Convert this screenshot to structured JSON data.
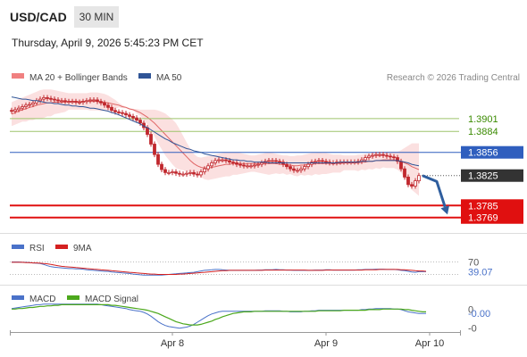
{
  "header": {
    "symbol": "USD/CAD",
    "timeframe": "30 MIN",
    "datetime": "Thursday, April 9, 2026 5:45:23 PM CET"
  },
  "credit": "Research © 2026 Trading Central",
  "colors": {
    "candle": "#c0272d",
    "bollinger": "#f4a6a6",
    "ma50": "#2f5496",
    "resistance": "#9dc46b",
    "support": "#e01010",
    "pivot": "#2f5ebe",
    "last": "#333333",
    "rsi": "#4a72c9",
    "rsi_ma": "#d42020",
    "macd": "#4a72c9",
    "macd_signal": "#4ca81c"
  },
  "chart_data": [
    {
      "type": "candlestick",
      "legend": [
        "MA 20 + Bollinger Bands",
        "MA 50"
      ],
      "ylim": [
        1.3752,
        1.3945
      ],
      "x_labels": [
        "Apr 8",
        "Apr 9",
        "Apr 10"
      ],
      "levels": [
        {
          "value": 1.3901,
          "label": "1.3901",
          "kind": "resistance"
        },
        {
          "value": 1.3884,
          "label": "1.3884",
          "kind": "resistance"
        },
        {
          "value": 1.3856,
          "label": "1.3856",
          "kind": "pivot"
        },
        {
          "value": 1.3785,
          "label": "1.3785",
          "kind": "support"
        },
        {
          "value": 1.3769,
          "label": "1.3769",
          "kind": "support"
        }
      ],
      "last_price": {
        "value": 1.3825,
        "label": "1.3825"
      },
      "close": [
        1.3911,
        1.3913,
        1.3915,
        1.3917,
        1.3919,
        1.392,
        1.3922,
        1.3925,
        1.3927,
        1.3929,
        1.3928,
        1.3927,
        1.3926,
        1.3925,
        1.3925,
        1.3924,
        1.3924,
        1.3924,
        1.3923,
        1.3923,
        1.3924,
        1.3925,
        1.3926,
        1.3926,
        1.3924,
        1.3922,
        1.3919,
        1.3916,
        1.3912,
        1.391,
        1.3909,
        1.3908,
        1.3906,
        1.3904,
        1.3902,
        1.3899,
        1.3895,
        1.3889,
        1.388,
        1.3867,
        1.3853,
        1.384,
        1.3833,
        1.3829,
        1.3829,
        1.383,
        1.3828,
        1.3827,
        1.3827,
        1.3828,
        1.3829,
        1.3827,
        1.3826,
        1.383,
        1.3834,
        1.3838,
        1.3842,
        1.3845,
        1.3846,
        1.3846,
        1.3845,
        1.3843,
        1.3842,
        1.384,
        1.3839,
        1.3838,
        1.3838,
        1.3838,
        1.3839,
        1.384,
        1.3842,
        1.3844,
        1.3845,
        1.3845,
        1.3844,
        1.3843,
        1.384,
        1.3837,
        1.3834,
        1.3832,
        1.3832,
        1.3834,
        1.3837,
        1.384,
        1.3843,
        1.3844,
        1.3845,
        1.3844,
        1.3843,
        1.3842,
        1.3842,
        1.3843,
        1.3843,
        1.3843,
        1.3843,
        1.3843,
        1.3843,
        1.3844,
        1.3846,
        1.3849,
        1.3851,
        1.3852,
        1.3853,
        1.3853,
        1.3852,
        1.3851,
        1.385,
        1.3849,
        1.3844,
        1.3834,
        1.3823,
        1.3813,
        1.3811,
        1.3818,
        1.3825
      ],
      "bb_upper": [
        1.3923,
        1.3925,
        1.3927,
        1.3929,
        1.3931,
        1.3933,
        1.3935,
        1.3937,
        1.3939,
        1.394,
        1.394,
        1.394,
        1.3939,
        1.3938,
        1.3937,
        1.3936,
        1.3935,
        1.3935,
        1.3935,
        1.3935,
        1.3935,
        1.3935,
        1.3936,
        1.3936,
        1.3936,
        1.3935,
        1.3934,
        1.3932,
        1.3929,
        1.3926,
        1.3922,
        1.3919,
        1.3917,
        1.3915,
        1.3914,
        1.3914,
        1.3913,
        1.3913,
        1.3913,
        1.3913,
        1.3913,
        1.3912,
        1.391,
        1.3908,
        1.3904,
        1.39,
        1.3895,
        1.3887,
        1.3878,
        1.3869,
        1.3861,
        1.3854,
        1.385,
        1.3849,
        1.385,
        1.3851,
        1.3852,
        1.3853,
        1.3854,
        1.3855,
        1.3856,
        1.3856,
        1.3856,
        1.3856,
        1.3855,
        1.3854,
        1.3853,
        1.3852,
        1.3852,
        1.3853,
        1.3854,
        1.3855,
        1.3856,
        1.3855,
        1.3854,
        1.3853,
        1.3852,
        1.3852,
        1.3851,
        1.3851,
        1.3852,
        1.3852,
        1.3853,
        1.3854,
        1.3855,
        1.3855,
        1.3856,
        1.3855,
        1.3855,
        1.3854,
        1.3853,
        1.3853,
        1.3853,
        1.3852,
        1.3852,
        1.3852,
        1.3852,
        1.3853,
        1.3853,
        1.3854,
        1.3854,
        1.3855,
        1.3855,
        1.3856,
        1.3856,
        1.3857,
        1.3857,
        1.3857,
        1.3857,
        1.3859,
        1.3862,
        1.3865,
        1.3868,
        1.3868,
        1.3868
      ],
      "bb_mid": [
        1.3907,
        1.3909,
        1.3911,
        1.3913,
        1.3914,
        1.3916,
        1.3917,
        1.3919,
        1.392,
        1.3921,
        1.3922,
        1.3922,
        1.3923,
        1.3923,
        1.3923,
        1.3923,
        1.3924,
        1.3924,
        1.3924,
        1.3924,
        1.3924,
        1.3924,
        1.3924,
        1.3924,
        1.3924,
        1.3923,
        1.3923,
        1.3922,
        1.3921,
        1.392,
        1.3919,
        1.3917,
        1.3916,
        1.3914,
        1.3913,
        1.3911,
        1.3909,
        1.3906,
        1.3903,
        1.3899,
        1.3895,
        1.389,
        1.3885,
        1.388,
        1.3875,
        1.387,
        1.3865,
        1.386,
        1.3855,
        1.385,
        1.3845,
        1.3841,
        1.3838,
        1.3836,
        1.3835,
        1.3835,
        1.3836,
        1.3837,
        1.3838,
        1.3839,
        1.384,
        1.384,
        1.3841,
        1.3841,
        1.3841,
        1.3841,
        1.3841,
        1.3841,
        1.3841,
        1.3841,
        1.3841,
        1.3841,
        1.3841,
        1.3841,
        1.3841,
        1.384,
        1.384,
        1.3839,
        1.3839,
        1.3838,
        1.3838,
        1.3839,
        1.3839,
        1.384,
        1.384,
        1.3841,
        1.3841,
        1.3841,
        1.3841,
        1.3841,
        1.3841,
        1.3841,
        1.3841,
        1.3842,
        1.3842,
        1.3842,
        1.3842,
        1.3842,
        1.3843,
        1.3843,
        1.3844,
        1.3844,
        1.3845,
        1.3845,
        1.3846,
        1.3846,
        1.3846,
        1.3846,
        1.3845,
        1.3844,
        1.3842,
        1.384,
        1.3837,
        1.3835,
        1.3833
      ],
      "bb_lower": [
        1.3891,
        1.3893,
        1.3895,
        1.3897,
        1.3897,
        1.3899,
        1.3899,
        1.3901,
        1.3901,
        1.3902,
        1.3904,
        1.3904,
        1.3907,
        1.3908,
        1.3909,
        1.391,
        1.3913,
        1.3913,
        1.3913,
        1.3913,
        1.3913,
        1.3913,
        1.3912,
        1.3912,
        1.3912,
        1.3911,
        1.3912,
        1.3912,
        1.3913,
        1.3914,
        1.3916,
        1.3915,
        1.3915,
        1.3913,
        1.3912,
        1.3908,
        1.3905,
        1.3899,
        1.3893,
        1.3885,
        1.3877,
        1.3868,
        1.386,
        1.3852,
        1.3846,
        1.384,
        1.3835,
        1.3833,
        1.3832,
        1.3831,
        1.3829,
        1.3828,
        1.3826,
        1.3823,
        1.382,
        1.3819,
        1.382,
        1.3821,
        1.3822,
        1.3823,
        1.3824,
        1.3824,
        1.3826,
        1.3826,
        1.3827,
        1.3828,
        1.3829,
        1.383,
        1.383,
        1.3829,
        1.3828,
        1.3827,
        1.3826,
        1.3827,
        1.3828,
        1.3827,
        1.3828,
        1.3826,
        1.3827,
        1.3825,
        1.3824,
        1.3826,
        1.3825,
        1.3826,
        1.3825,
        1.3827,
        1.3826,
        1.3827,
        1.3827,
        1.3828,
        1.3829,
        1.3829,
        1.3829,
        1.3832,
        1.3832,
        1.3832,
        1.3832,
        1.3831,
        1.3833,
        1.3832,
        1.3834,
        1.3833,
        1.3835,
        1.3834,
        1.3836,
        1.3835,
        1.3835,
        1.3835,
        1.3833,
        1.3829,
        1.3822,
        1.3815,
        1.3806,
        1.3802,
        1.3798
      ],
      "ma50": [
        1.393,
        1.3929,
        1.3928,
        1.3927,
        1.3927,
        1.3926,
        1.3925,
        1.3925,
        1.3924,
        1.3923,
        1.3922,
        1.3922,
        1.3921,
        1.3921,
        1.392,
        1.3919,
        1.3919,
        1.3918,
        1.3918,
        1.3917,
        1.3917,
        1.3916,
        1.3915,
        1.3915,
        1.3914,
        1.3913,
        1.3912,
        1.3911,
        1.3909,
        1.3908,
        1.3906,
        1.3904,
        1.3902,
        1.39,
        1.3898,
        1.3896,
        1.3894,
        1.3891,
        1.3889,
        1.3886,
        1.3883,
        1.388,
        1.3877,
        1.3874,
        1.3872,
        1.3869,
        1.3867,
        1.3865,
        1.3863,
        1.3861,
        1.386,
        1.3858,
        1.3857,
        1.3856,
        1.3854,
        1.3853,
        1.3852,
        1.3851,
        1.385,
        1.3849,
        1.3848,
        1.3847,
        1.3846,
        1.3846,
        1.3845,
        1.3845,
        1.3844,
        1.3844,
        1.3843,
        1.3843,
        1.3843,
        1.3843,
        1.3842,
        1.3842,
        1.3842,
        1.3842,
        1.3842,
        1.3842,
        1.3842,
        1.3842,
        1.3842,
        1.3842,
        1.3842,
        1.3842,
        1.3842,
        1.3842,
        1.3842,
        1.3842,
        1.3842,
        1.3842,
        1.3842,
        1.3842,
        1.3843,
        1.3843,
        1.3843,
        1.3843,
        1.3843,
        1.3843,
        1.3844,
        1.3844,
        1.3844,
        1.3844,
        1.3845,
        1.3845,
        1.3845,
        1.3845,
        1.3845,
        1.3845,
        1.3845,
        1.3844,
        1.3843,
        1.3842,
        1.384,
        1.3839,
        1.3838
      ],
      "forecast": [
        {
          "x": 115,
          "y": 1.3825
        },
        {
          "x": 119,
          "y": 1.3817
        },
        {
          "x": 122,
          "y": 1.3773
        }
      ]
    },
    {
      "type": "line",
      "legend": [
        "RSI",
        "9MA"
      ],
      "ylim": [
        0,
        100
      ],
      "ticks": [
        {
          "value": 70,
          "label": "70"
        },
        {
          "value": 30,
          "label": ""
        }
      ],
      "current": {
        "value": 39.07,
        "label": "39.07"
      },
      "rsi": [
        70,
        70,
        70,
        69,
        69,
        68,
        67,
        66,
        65,
        62,
        58,
        55,
        53,
        52,
        51,
        50,
        49,
        49,
        48,
        48,
        47,
        45,
        44,
        43,
        42,
        41,
        40,
        40,
        38,
        37,
        36,
        35,
        34,
        33,
        31,
        30,
        29,
        28,
        28,
        28,
        28,
        28,
        28,
        29,
        30,
        31,
        32,
        33,
        34,
        35,
        36,
        37,
        39,
        41,
        43,
        44,
        45,
        46,
        46,
        45,
        44,
        43,
        43,
        43,
        43,
        43,
        43,
        43,
        43,
        44,
        44,
        45,
        45,
        45,
        46,
        45,
        45,
        44,
        44,
        43,
        43,
        43,
        43,
        43,
        43,
        44,
        44,
        44,
        45,
        45,
        44,
        44,
        44,
        44,
        44,
        44,
        44,
        45,
        45,
        46,
        46,
        46,
        47,
        47,
        47,
        46,
        46,
        46,
        45,
        43,
        42,
        40,
        38,
        37,
        39,
        39,
        39
      ],
      "rsi_ma": [
        69,
        69,
        69,
        69,
        68,
        68,
        67,
        67,
        66,
        65,
        64,
        62,
        60,
        58,
        56,
        55,
        54,
        53,
        52,
        51,
        50,
        49,
        48,
        47,
        46,
        45,
        44,
        43,
        42,
        41,
        40,
        39,
        38,
        37,
        36,
        35,
        34,
        33,
        32,
        31,
        31,
        30,
        30,
        30,
        30,
        30,
        30,
        31,
        31,
        32,
        33,
        34,
        35,
        36,
        37,
        38,
        39,
        40,
        41,
        42,
        42,
        43,
        43,
        43,
        43,
        43,
        43,
        43,
        43,
        43,
        43,
        44,
        44,
        44,
        44,
        44,
        44,
        44,
        44,
        44,
        44,
        44,
        44,
        43,
        43,
        43,
        43,
        43,
        44,
        44,
        44,
        44,
        44,
        44,
        44,
        44,
        44,
        44,
        44,
        45,
        45,
        45,
        45,
        46,
        46,
        46,
        46,
        46,
        46,
        45,
        45,
        44,
        43,
        42,
        41,
        41,
        40
      ]
    },
    {
      "type": "line",
      "legend": [
        "MACD",
        "MACD Signal"
      ],
      "ylim": [
        -0.00042,
        0.00012
      ],
      "ticks": [
        {
          "value": 0,
          "label": "0"
        },
        {
          "value": -0.00035,
          "label": "-0"
        }
      ],
      "current": {
        "value": -8e-05,
        "label": "-0.00"
      },
      "macd": [
        1e-05,
        2e-05,
        3e-05,
        4e-05,
        5e-05,
        6e-05,
        7e-05,
        8e-05,
        8e-05,
        9e-05,
        9e-05,
        9e-05,
        9e-05,
        9e-05,
        9e-05,
        9e-05,
        9e-05,
        9e-05,
        9e-05,
        9e-05,
        9e-05,
        9e-05,
        9e-05,
        9e-05,
        9e-05,
        8e-05,
        7e-05,
        6e-05,
        5e-05,
        4e-05,
        3e-05,
        2e-05,
        1e-05,
        -1e-05,
        -2e-05,
        -3e-05,
        -4e-05,
        -6e-05,
        -9e-05,
        -0.00013,
        -0.00018,
        -0.00023,
        -0.00027,
        -0.0003,
        -0.00032,
        -0.00033,
        -0.00034,
        -0.00035,
        -0.00034,
        -0.00033,
        -0.00031,
        -0.00028,
        -0.00024,
        -0.0002,
        -0.00016,
        -0.00012,
        -9e-05,
        -7e-05,
        -5e-05,
        -4e-05,
        -4e-05,
        -4e-05,
        -4e-05,
        -4e-05,
        -4e-05,
        -4e-05,
        -4e-05,
        -4e-05,
        -4e-05,
        -4e-05,
        -4e-05,
        -3e-05,
        -3e-05,
        -3e-05,
        -3e-05,
        -3e-05,
        -4e-05,
        -4e-05,
        -5e-05,
        -5e-05,
        -5e-05,
        -5e-05,
        -4e-05,
        -4e-05,
        -3e-05,
        -3e-05,
        -2e-05,
        -2e-05,
        -2e-05,
        -2e-05,
        -2e-05,
        -2e-05,
        -2e-05,
        -2e-05,
        -2e-05,
        -2e-05,
        -2e-05,
        -2e-05,
        -1e-05,
        -1e-05,
        0.0,
        0.0,
        1e-05,
        1e-05,
        1e-05,
        1e-05,
        1e-05,
        0.0,
        0.0,
        -1e-05,
        -3e-05,
        -5e-05,
        -6e-05,
        -7e-05,
        -8e-05,
        -8e-05,
        -8e-05
      ],
      "macd_signal": [
        0.0,
        0.0,
        1e-05,
        1e-05,
        2e-05,
        3e-05,
        3e-05,
        4e-05,
        5e-05,
        5e-05,
        6e-05,
        6e-05,
        7e-05,
        7e-05,
        8e-05,
        8e-05,
        8e-05,
        8e-05,
        8e-05,
        8e-05,
        8e-05,
        8e-05,
        8e-05,
        8e-05,
        8e-05,
        8e-05,
        8e-05,
        8e-05,
        7e-05,
        7e-05,
        6e-05,
        5e-05,
        4e-05,
        3e-05,
        2e-05,
        1e-05,
        0.0,
        -1e-05,
        -2e-05,
        -4e-05,
        -6e-05,
        -8e-05,
        -0.00011,
        -0.00014,
        -0.00017,
        -0.0002,
        -0.00023,
        -0.00025,
        -0.00027,
        -0.00028,
        -0.00029,
        -0.00029,
        -0.00029,
        -0.00028,
        -0.00026,
        -0.00024,
        -0.00022,
        -0.00019,
        -0.00017,
        -0.00014,
        -0.00012,
        -0.0001,
        -8e-05,
        -7e-05,
        -6e-05,
        -5e-05,
        -5e-05,
        -5e-05,
        -4e-05,
        -4e-05,
        -4e-05,
        -4e-05,
        -4e-05,
        -4e-05,
        -4e-05,
        -4e-05,
        -4e-05,
        -4e-05,
        -4e-05,
        -4e-05,
        -4e-05,
        -4e-05,
        -4e-05,
        -4e-05,
        -4e-05,
        -4e-05,
        -3e-05,
        -3e-05,
        -3e-05,
        -3e-05,
        -3e-05,
        -3e-05,
        -3e-05,
        -2e-05,
        -2e-05,
        -2e-05,
        -2e-05,
        -2e-05,
        -2e-05,
        -2e-05,
        -1e-05,
        -1e-05,
        -1e-05,
        -1e-05,
        0.0,
        0.0,
        0.0,
        0.0,
        0.0,
        0.0,
        -1e-05,
        -1e-05,
        -2e-05,
        -3e-05,
        -4e-05,
        -5e-05,
        -5e-05
      ]
    }
  ]
}
